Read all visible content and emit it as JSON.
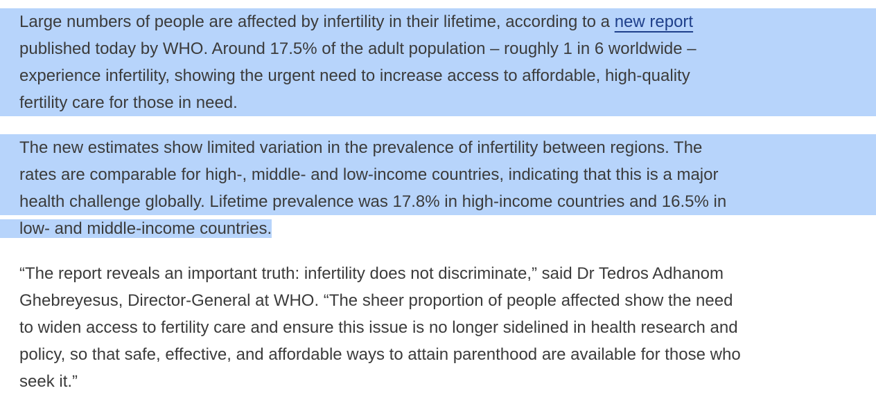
{
  "paragraphs": [
    {
      "lines": [
        {
          "before": "Large numbers of people are affected by infertility in their lifetime, according to a ",
          "link": "new report",
          "after": ""
        },
        {
          "before": "published today by WHO. Around 17.5% of the adult population – roughly 1 in 6 worldwide –",
          "link": "",
          "after": ""
        },
        {
          "before": "experience infertility, showing the urgent need to increase access to affordable, high-quality",
          "link": "",
          "after": ""
        },
        {
          "before": "fertility care for those in need.",
          "link": "",
          "after": ""
        }
      ]
    },
    {
      "lines": [
        {
          "before": "The new estimates show limited variation in the prevalence of infertility between regions. The",
          "link": "",
          "after": ""
        },
        {
          "before": "rates are comparable for high-, middle- and low-income countries, indicating that this is a major",
          "link": "",
          "after": ""
        },
        {
          "before": "health challenge globally. Lifetime prevalence was 17.8% in high-income countries and 16.5% in",
          "link": "",
          "after": ""
        },
        {
          "before": "low- and middle-income countries.",
          "link": "",
          "after": ""
        }
      ]
    },
    {
      "lines": [
        {
          "before": "“The report reveals an important truth: infertility does not discriminate,” said Dr Tedros Adhanom",
          "link": "",
          "after": ""
        },
        {
          "before": "Ghebreyesus, Director-General at WHO. “The sheer proportion of people affected show the need",
          "link": "",
          "after": ""
        },
        {
          "before": "to widen access to fertility care and ensure this issue is no longer sidelined in health research and",
          "link": "",
          "after": ""
        },
        {
          "before": "policy, so that safe, effective, and affordable ways to attain parenthood are available for those who",
          "link": "",
          "after": ""
        },
        {
          "before": "seek it.”",
          "link": "",
          "after": ""
        }
      ]
    }
  ],
  "colors": {
    "text": "#3b3b3b",
    "link": "#1e3f8a",
    "selection": "#b7d4fb",
    "background": "#ffffff"
  }
}
